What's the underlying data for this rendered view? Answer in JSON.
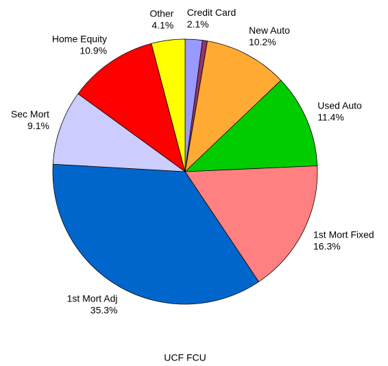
{
  "chart_data": {
    "type": "pie",
    "title": "UCF FCU",
    "categories": [
      "Credit Card",
      null,
      "New Auto",
      "Used Auto",
      "1st Mort Fixed",
      "1st Mort Adj",
      "Sec Mort",
      "Home Equity",
      "Other"
    ],
    "values": [
      2.1,
      0.6,
      10.2,
      11.4,
      16.3,
      35.3,
      9.1,
      10.9,
      4.1
    ],
    "value_labels": [
      "2.1%",
      null,
      "10.2%",
      "11.4%",
      "16.3%",
      "35.3%",
      "9.1%",
      "10.9%",
      "4.1%"
    ],
    "colors": [
      "#9999ff",
      "#993366",
      "#ffaa33",
      "#00cc00",
      "#ff8080",
      "#0066cc",
      "#ccccff",
      "#ff0000",
      "#ffff00"
    ]
  }
}
